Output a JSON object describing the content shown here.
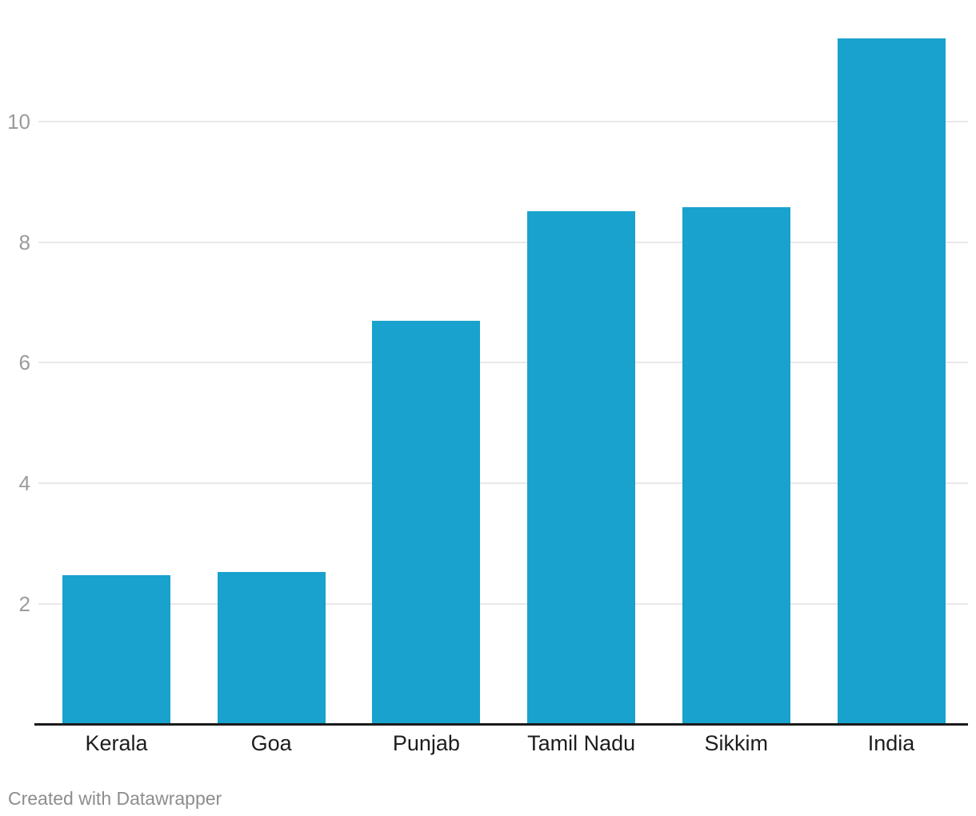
{
  "chart_data": {
    "type": "bar",
    "title": "",
    "xlabel": "",
    "ylabel": "",
    "categories": [
      "Kerala",
      "Goa",
      "Punjab",
      "Tamil Nadu",
      "Sikkim",
      "India"
    ],
    "values": [
      2.47,
      2.53,
      6.7,
      8.52,
      8.58,
      11.38
    ],
    "yticks": [
      2,
      4,
      6,
      8,
      10
    ],
    "ylim": [
      0,
      11.6
    ],
    "grid": true,
    "legend_position": "none",
    "bar_color": "#18a2cd"
  },
  "footer": {
    "credit": "Created with Datawrapper"
  },
  "colors": {
    "bar": "#18a2cd",
    "gridline": "#e8e8e8",
    "baseline": "#1a1a1a",
    "tick_label": "#9b9b9b",
    "category_label": "#1d1d1d",
    "footer_text": "#8d8d8d",
    "background": "#ffffff"
  }
}
